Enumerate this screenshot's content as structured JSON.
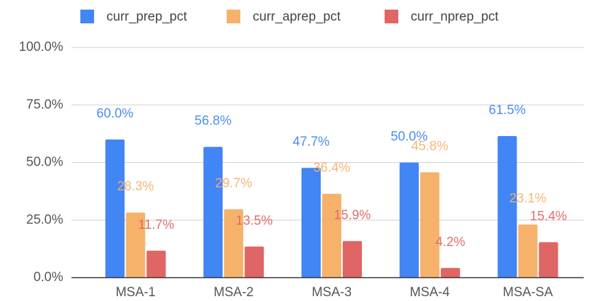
{
  "chart_data": {
    "type": "bar",
    "categories": [
      "MSA-1",
      "MSA-2",
      "MSA-3",
      "MSA-4",
      "MSA-SA"
    ],
    "series": [
      {
        "name": "curr_prep_pct",
        "color": "#4285f4",
        "values": [
          60.0,
          56.8,
          47.7,
          50.0,
          61.5
        ],
        "value_labels": [
          "60.0%",
          "56.8%",
          "47.7%",
          "50.0%",
          "61.5%"
        ]
      },
      {
        "name": "curr_aprep_pct",
        "color": "#f6b26b",
        "values": [
          28.3,
          29.7,
          36.4,
          45.8,
          23.1
        ],
        "value_labels": [
          "28.3%",
          "29.7%",
          "36.4%",
          "45.8%",
          "23.1%"
        ]
      },
      {
        "name": "curr_nprep_pct",
        "color": "#e06666",
        "values": [
          11.7,
          13.5,
          15.9,
          4.2,
          15.4
        ],
        "value_labels": [
          "11.7%",
          "13.5%",
          "15.9%",
          "4.2%",
          "15.4%"
        ]
      }
    ],
    "ylim": [
      0,
      100
    ],
    "yticks": [
      {
        "value": 0,
        "label": "0.0%"
      },
      {
        "value": 25,
        "label": "25.0%"
      },
      {
        "value": 50,
        "label": "50.0%"
      },
      {
        "value": 75,
        "label": "75.0%"
      },
      {
        "value": 100,
        "label": "100.0%"
      }
    ],
    "grid": true,
    "legend": "top"
  }
}
